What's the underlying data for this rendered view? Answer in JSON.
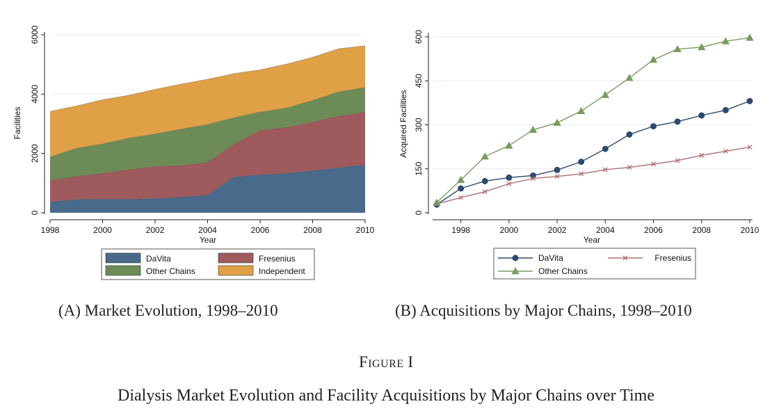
{
  "figure": {
    "label_word": "Figure",
    "label_numeral": "I",
    "title": "Dialysis Market Evolution and Facility Acquisitions by Major Chains over Time"
  },
  "captions": {
    "a": "(A) Market Evolution, 1998–2010",
    "b": "(B) Acquisitions by Major Chains, 1998–2010"
  },
  "chart_data": [
    {
      "type": "area",
      "stacked": true,
      "xlabel": "Year",
      "ylabel": "Facilities",
      "xlim": [
        1998,
        2010
      ],
      "ylim": [
        0,
        6000
      ],
      "xticks": [
        1998,
        2000,
        2002,
        2004,
        2006,
        2008,
        2010
      ],
      "yticks": [
        0,
        2000,
        4000,
        6000
      ],
      "grid": true,
      "legend_position": "bottom",
      "x": [
        1998,
        1999,
        2000,
        2001,
        2002,
        2003,
        2004,
        2005,
        2006,
        2007,
        2008,
        2009,
        2010
      ],
      "series": [
        {
          "name": "DaVita",
          "color": "#4a6a8b",
          "values": [
            370,
            450,
            460,
            460,
            480,
            530,
            600,
            1210,
            1280,
            1330,
            1420,
            1520,
            1620
          ]
        },
        {
          "name": "Fresenius",
          "color": "#9e5a5c",
          "values": [
            720,
            780,
            870,
            1000,
            1080,
            1070,
            1100,
            1100,
            1500,
            1550,
            1640,
            1740,
            1780
          ]
        },
        {
          "name": "Other Chains",
          "color": "#6d8b57",
          "values": [
            800,
            950,
            1000,
            1060,
            1100,
            1230,
            1280,
            900,
            620,
            660,
            730,
            820,
            830
          ]
        },
        {
          "name": "Independent",
          "color": "#e0a046",
          "values": [
            1530,
            1420,
            1480,
            1440,
            1500,
            1510,
            1520,
            1480,
            1420,
            1470,
            1450,
            1450,
            1400
          ]
        }
      ],
      "legend_order": [
        "DaVita",
        "Fresenius",
        "Other Chains",
        "Independent"
      ]
    },
    {
      "type": "line",
      "xlabel": "Year",
      "ylabel": "Acquired Facilities",
      "xlim": [
        1997,
        2010
      ],
      "ylim": [
        0,
        600
      ],
      "xticks": [
        1998,
        2000,
        2002,
        2004,
        2006,
        2008,
        2010
      ],
      "yticks": [
        0,
        150,
        300,
        450,
        600
      ],
      "grid": true,
      "legend_position": "bottom",
      "x": [
        1997,
        1998,
        1999,
        2000,
        2001,
        2002,
        2003,
        2004,
        2005,
        2006,
        2007,
        2008,
        2009,
        2010
      ],
      "series": [
        {
          "name": "DaVita",
          "color": "#2e4a6e",
          "marker": "circle",
          "values": [
            28,
            83,
            108,
            120,
            127,
            146,
            174,
            218,
            267,
            295,
            311,
            332,
            350,
            381
          ]
        },
        {
          "name": "Fresenius",
          "color": "#b06f73",
          "marker": "x",
          "values": [
            30,
            52,
            72,
            99,
            117,
            124,
            133,
            147,
            155,
            166,
            178,
            196,
            210,
            224
          ]
        },
        {
          "name": "Other Chains",
          "color": "#789b5e",
          "marker": "triangle",
          "values": [
            35,
            112,
            192,
            229,
            283,
            307,
            347,
            402,
            460,
            522,
            558,
            565,
            585,
            597
          ]
        }
      ],
      "legend_order": [
        "DaVita",
        "Fresenius",
        "Other Chains"
      ]
    }
  ]
}
